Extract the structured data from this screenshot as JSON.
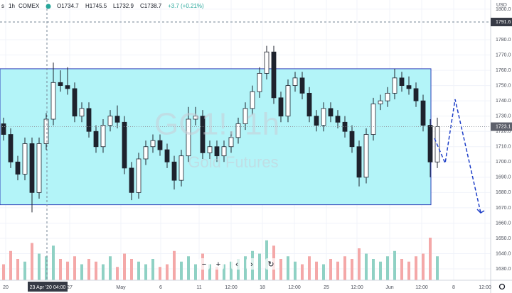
{
  "chart_data": {
    "type": "candlestick",
    "header": {
      "symbol": "s",
      "interval": "1h",
      "exchange": "COMEX",
      "open": "O1734.7",
      "high": "H1745.5",
      "low": "L1732.9",
      "close": "C1738.7",
      "change": "+3.7 (+0.21%)"
    },
    "watermark": {
      "title": "GC1!, 1h",
      "subtitle": "Gold Futures"
    },
    "currency": "USD",
    "x": [
      0.5,
      1.5,
      2.5,
      3.5,
      4.5,
      5.5,
      6.5,
      7.5,
      8.5,
      9.5,
      10.5,
      11.5,
      12.5,
      13.5,
      14.5,
      15.5,
      16.5,
      17.5,
      18.5,
      19.5,
      20.5,
      21.5,
      22.5,
      23.5,
      24.5,
      25.5,
      26.5,
      27.5,
      28.5,
      29.5,
      30.5,
      31.5,
      32.5,
      33.5,
      34.5,
      35.5,
      36.5,
      37.5,
      38.5,
      39.5,
      40.5,
      41.5,
      42.5,
      43.5,
      44.5,
      45.5,
      46.5,
      47.5,
      48.5,
      49.5,
      50.5,
      51.5,
      52.5,
      53.5,
      54.5,
      55.5,
      56.5,
      57.5,
      58.5,
      59.5,
      60.5,
      61.5
    ],
    "open": [
      1725,
      1718,
      1700,
      1692,
      1712,
      1680,
      1712,
      1728,
      1752,
      1750,
      1748,
      1730,
      1735,
      1720,
      1710,
      1724,
      1730,
      1726,
      1696,
      1680,
      1702,
      1710,
      1714,
      1708,
      1700,
      1688,
      1704,
      1728,
      1730,
      1706,
      1710,
      1704,
      1710,
      1716,
      1725,
      1735,
      1746,
      1758,
      1772,
      1742,
      1730,
      1750,
      1755,
      1745,
      1730,
      1724,
      1735,
      1730,
      1726,
      1720,
      1710,
      1690,
      1718,
      1738,
      1740,
      1745,
      1755,
      1750,
      1748,
      1740,
      1724,
      1700
    ],
    "high": [
      1729,
      1722,
      1704,
      1716,
      1716,
      1716,
      1732,
      1765,
      1760,
      1762,
      1752,
      1739,
      1739,
      1724,
      1728,
      1734,
      1737,
      1730,
      1700,
      1706,
      1714,
      1718,
      1718,
      1712,
      1704,
      1708,
      1736,
      1736,
      1734,
      1714,
      1714,
      1714,
      1720,
      1729,
      1739,
      1750,
      1762,
      1776,
      1776,
      1746,
      1754,
      1759,
      1759,
      1749,
      1734,
      1739,
      1739,
      1734,
      1730,
      1724,
      1714,
      1722,
      1742,
      1744,
      1749,
      1761,
      1759,
      1756,
      1752,
      1744,
      1728,
      1729
    ],
    "low": [
      1714,
      1696,
      1688,
      1688,
      1667,
      1676,
      1708,
      1724,
      1746,
      1744,
      1726,
      1726,
      1716,
      1706,
      1706,
      1720,
      1722,
      1692,
      1675,
      1676,
      1698,
      1706,
      1704,
      1696,
      1682,
      1684,
      1700,
      1724,
      1702,
      1702,
      1700,
      1700,
      1706,
      1712,
      1721,
      1731,
      1742,
      1754,
      1738,
      1726,
      1726,
      1746,
      1741,
      1726,
      1720,
      1720,
      1726,
      1722,
      1716,
      1706,
      1684,
      1686,
      1714,
      1734,
      1736,
      1741,
      1746,
      1744,
      1736,
      1720,
      1690,
      1696
    ],
    "close": [
      1718,
      1700,
      1692,
      1712,
      1680,
      1712,
      1728,
      1752,
      1750,
      1748,
      1730,
      1735,
      1720,
      1710,
      1724,
      1730,
      1726,
      1696,
      1680,
      1702,
      1710,
      1714,
      1708,
      1700,
      1688,
      1704,
      1728,
      1730,
      1706,
      1710,
      1704,
      1710,
      1716,
      1725,
      1735,
      1746,
      1758,
      1772,
      1742,
      1730,
      1750,
      1755,
      1745,
      1730,
      1724,
      1735,
      1730,
      1726,
      1720,
      1710,
      1690,
      1718,
      1738,
      1740,
      1745,
      1755,
      1750,
      1748,
      1740,
      1724,
      1700,
      1723.1
    ],
    "volume": [
      30,
      55,
      40,
      35,
      70,
      50,
      45,
      65,
      40,
      35,
      45,
      30,
      40,
      35,
      30,
      45,
      25,
      50,
      40,
      35,
      30,
      40,
      25,
      30,
      55,
      35,
      45,
      30,
      50,
      30,
      25,
      30,
      35,
      40,
      45,
      55,
      50,
      75,
      65,
      40,
      45,
      35,
      30,
      45,
      35,
      30,
      40,
      35,
      45,
      40,
      60,
      50,
      40,
      35,
      45,
      55,
      40,
      35,
      45,
      50,
      80,
      45
    ],
    "up_color": "#1e222d",
    "down_color": "#1e222d",
    "volume_up_color": "#8fd1c4",
    "volume_down_color": "#f4a8a8",
    "xlim": [
      0,
      69
    ],
    "xticks": [
      {
        "value": 0.8,
        "label": "20"
      },
      {
        "value": 9.8,
        "label": "27"
      },
      {
        "value": 17,
        "label": "May"
      },
      {
        "value": 22.6,
        "label": "6"
      },
      {
        "value": 28,
        "label": "11"
      },
      {
        "value": 32.5,
        "label": "12:00"
      },
      {
        "value": 36.9,
        "label": "18"
      },
      {
        "value": 41.4,
        "label": "12:00"
      },
      {
        "value": 45.9,
        "label": "25"
      },
      {
        "value": 50.2,
        "label": "12:00"
      },
      {
        "value": 54.8,
        "label": "Jun"
      },
      {
        "value": 59.3,
        "label": "12:00"
      },
      {
        "value": 63.8,
        "label": "8"
      },
      {
        "value": 68.2,
        "label": "12:00"
      }
    ],
    "ylim": [
      1622.6,
      1806.0
    ],
    "yticks": [
      {
        "value": 1630,
        "label": "1630.0"
      },
      {
        "value": 1640,
        "label": "1640.0"
      },
      {
        "value": 1650,
        "label": "1650.0"
      },
      {
        "value": 1660,
        "label": "1660.0"
      },
      {
        "value": 1670,
        "label": "1670.0"
      },
      {
        "value": 1680,
        "label": "1680.0"
      },
      {
        "value": 1690,
        "label": "1690.0"
      },
      {
        "value": 1700,
        "label": "1700.0"
      },
      {
        "value": 1710,
        "label": "1710.0"
      },
      {
        "value": 1720,
        "label": "1720.0"
      },
      {
        "value": 1730,
        "label": "1730.0"
      },
      {
        "value": 1740,
        "label": "1740.0"
      },
      {
        "value": 1750,
        "label": "1750.0"
      },
      {
        "value": 1760,
        "label": "1760.0"
      },
      {
        "value": 1770,
        "label": "1770.0"
      },
      {
        "value": 1780,
        "label": "1780.0"
      },
      {
        "value": 1800,
        "label": "1800.0"
      }
    ],
    "grid": true,
    "rectangle": {
      "x": [
        0,
        60.6
      ],
      "y": [
        1672,
        1761
      ],
      "fill": "#b3f4f8",
      "stroke": "#2f3fb8"
    },
    "projection": {
      "x": [
        61.1,
        62.6,
        64.0,
        67.6
      ],
      "y": [
        1715.5,
        1699.2,
        1741.0,
        1666.7
      ],
      "color": "#1e3fc8"
    },
    "crosshair": {
      "x": 6.6,
      "x_label": "23 Apr '20  04:00",
      "y": 1791.6,
      "y_label": "1791.6"
    },
    "last_price": {
      "value": 1723.1,
      "label": "1723.1"
    },
    "toolbar": [
      "−",
      "+",
      "‹",
      "›",
      "↻"
    ]
  }
}
